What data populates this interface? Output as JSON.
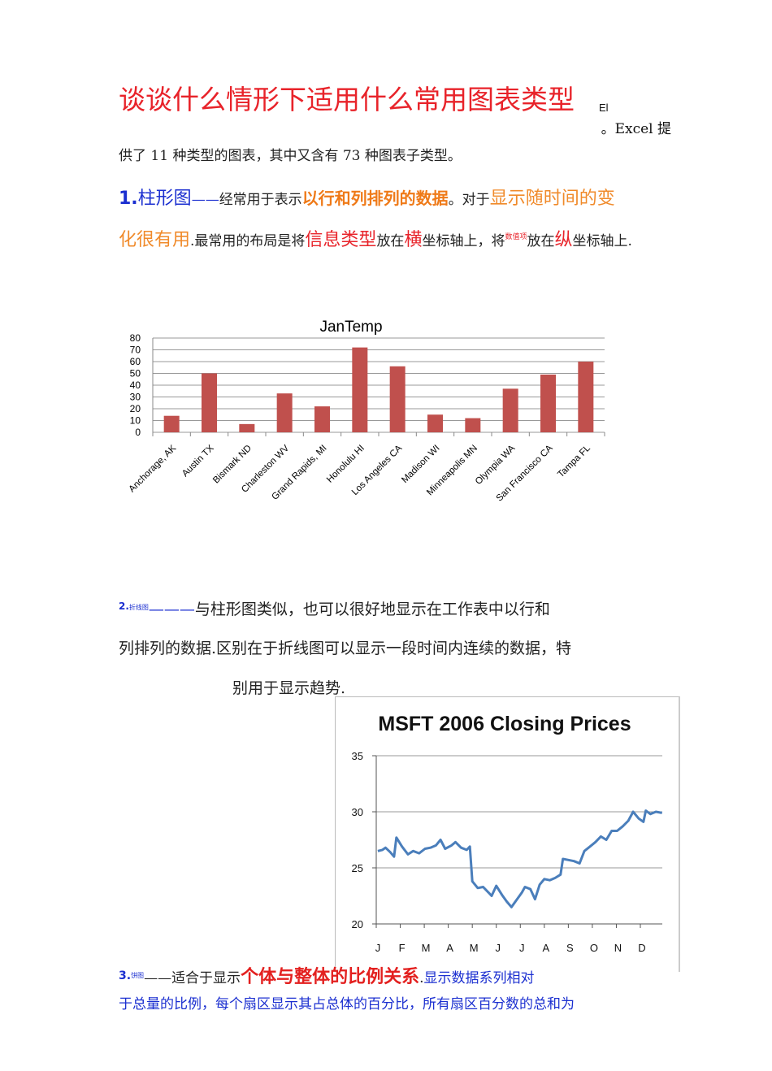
{
  "header": {
    "title": "谈谈什么情形下适用什么常用图表类型",
    "title_suffix": "El",
    "intro_line1": "。Excel 提",
    "intro_line2": "供了 11 种类型的图表，其中又含有 73 种图表子类型。"
  },
  "section1": {
    "number": "1.",
    "name": "柱形图",
    "dash": "——",
    "t1": "经常用于表示",
    "h1": "以行和列排列的数据",
    "t2": "。对于",
    "h2": "显示随时间的变",
    "h3": "化很有用",
    "t3": ".最常用的布局是将",
    "h4": "信息类型",
    "t4": "放在",
    "h5": "横",
    "t5": "坐标轴上，将",
    "h6": "数值项",
    "t6": "放在",
    "h7": "纵",
    "t7": "坐标轴上."
  },
  "section2": {
    "number": "2.",
    "name": "折线图",
    "dash": "———",
    "line1": "与柱形图类似，也可以很好地显示在工作表中以行和",
    "line2": "列排列的数据.区别在于折线图可以显示一段时间内连续的数据，特",
    "line3": "别用于显示趋势."
  },
  "section3": {
    "number": "3.",
    "name": "饼图",
    "dash": "——",
    "t1": "适合于显示",
    "h1": "个体与整体的比例关系",
    "t2": ".",
    "t3": "显示数据系列相对",
    "line2": "于总量的比例，每个扇区显示其占总体的百分比，所有扇区百分数的总和为"
  },
  "chart_data": [
    {
      "type": "bar",
      "title": "JanTemp",
      "categories": [
        "Anchorage, AK",
        "Austin TX",
        "Bismark ND",
        "Charleston WV",
        "Grand Rapids,  MI",
        "Honolulu HI",
        "Los Angeles CA",
        "Madison WI",
        "Minneapolis MN",
        "Olympia WA",
        "San Francisco CA",
        "Tampa FL"
      ],
      "values": [
        14,
        50,
        7,
        33,
        22,
        72,
        56,
        15,
        12,
        37,
        49,
        60
      ],
      "ylim": [
        0,
        80
      ],
      "yticks": [
        0,
        10,
        20,
        30,
        40,
        50,
        60,
        70,
        80
      ],
      "grid": true,
      "legend": "none",
      "bar_color": "#c0504d"
    },
    {
      "type": "line",
      "title": "MSFT 2006 Closing Prices",
      "ylim": [
        20,
        35
      ],
      "yticks": [
        20,
        25,
        30,
        35
      ],
      "xticks": [
        "J",
        "F",
        "M",
        "A",
        "M",
        "J",
        "J",
        "A",
        "S",
        "O",
        "N",
        "D"
      ],
      "grid": true,
      "legend": "none",
      "line_color": "#4a7ebb",
      "points": [
        [
          "2006-01-03",
          26.5
        ],
        [
          "2006-01-09",
          26.6
        ],
        [
          "2006-01-13",
          26.8
        ],
        [
          "2006-01-19",
          26.4
        ],
        [
          "2006-01-24",
          26.0
        ],
        [
          "2006-01-27",
          27.7
        ],
        [
          "2006-02-03",
          26.9
        ],
        [
          "2006-02-10",
          26.2
        ],
        [
          "2006-02-16",
          26.5
        ],
        [
          "2006-02-23",
          26.3
        ],
        [
          "2006-03-02",
          26.7
        ],
        [
          "2006-03-09",
          26.8
        ],
        [
          "2006-03-16",
          27.0
        ],
        [
          "2006-03-22",
          27.5
        ],
        [
          "2006-03-28",
          26.7
        ],
        [
          "2006-04-05",
          27.0
        ],
        [
          "2006-04-10",
          27.3
        ],
        [
          "2006-04-17",
          26.8
        ],
        [
          "2006-04-24",
          26.6
        ],
        [
          "2006-04-28",
          26.9
        ],
        [
          "2006-05-01",
          23.8
        ],
        [
          "2006-05-08",
          23.2
        ],
        [
          "2006-05-15",
          23.3
        ],
        [
          "2006-05-22",
          22.8
        ],
        [
          "2006-05-26",
          22.5
        ],
        [
          "2006-06-01",
          23.4
        ],
        [
          "2006-06-08",
          22.6
        ],
        [
          "2006-06-14",
          22.0
        ],
        [
          "2006-06-20",
          21.5
        ],
        [
          "2006-06-26",
          22.1
        ],
        [
          "2006-07-03",
          22.8
        ],
        [
          "2006-07-07",
          23.3
        ],
        [
          "2006-07-14",
          23.1
        ],
        [
          "2006-07-20",
          22.2
        ],
        [
          "2006-07-26",
          23.5
        ],
        [
          "2006-08-01",
          24.0
        ],
        [
          "2006-08-08",
          23.9
        ],
        [
          "2006-08-15",
          24.1
        ],
        [
          "2006-08-22",
          24.4
        ],
        [
          "2006-08-25",
          25.8
        ],
        [
          "2006-09-01",
          25.7
        ],
        [
          "2006-09-08",
          25.6
        ],
        [
          "2006-09-15",
          25.4
        ],
        [
          "2006-09-21",
          26.5
        ],
        [
          "2006-09-28",
          26.9
        ],
        [
          "2006-10-05",
          27.3
        ],
        [
          "2006-10-12",
          27.8
        ],
        [
          "2006-10-19",
          27.5
        ],
        [
          "2006-10-26",
          28.3
        ],
        [
          "2006-11-02",
          28.3
        ],
        [
          "2006-11-09",
          28.7
        ],
        [
          "2006-11-16",
          29.2
        ],
        [
          "2006-11-22",
          30.0
        ],
        [
          "2006-11-29",
          29.4
        ],
        [
          "2006-12-05",
          29.1
        ],
        [
          "2006-12-08",
          30.1
        ],
        [
          "2006-12-14",
          29.8
        ],
        [
          "2006-12-21",
          30.0
        ],
        [
          "2006-12-29",
          29.9
        ]
      ]
    }
  ]
}
